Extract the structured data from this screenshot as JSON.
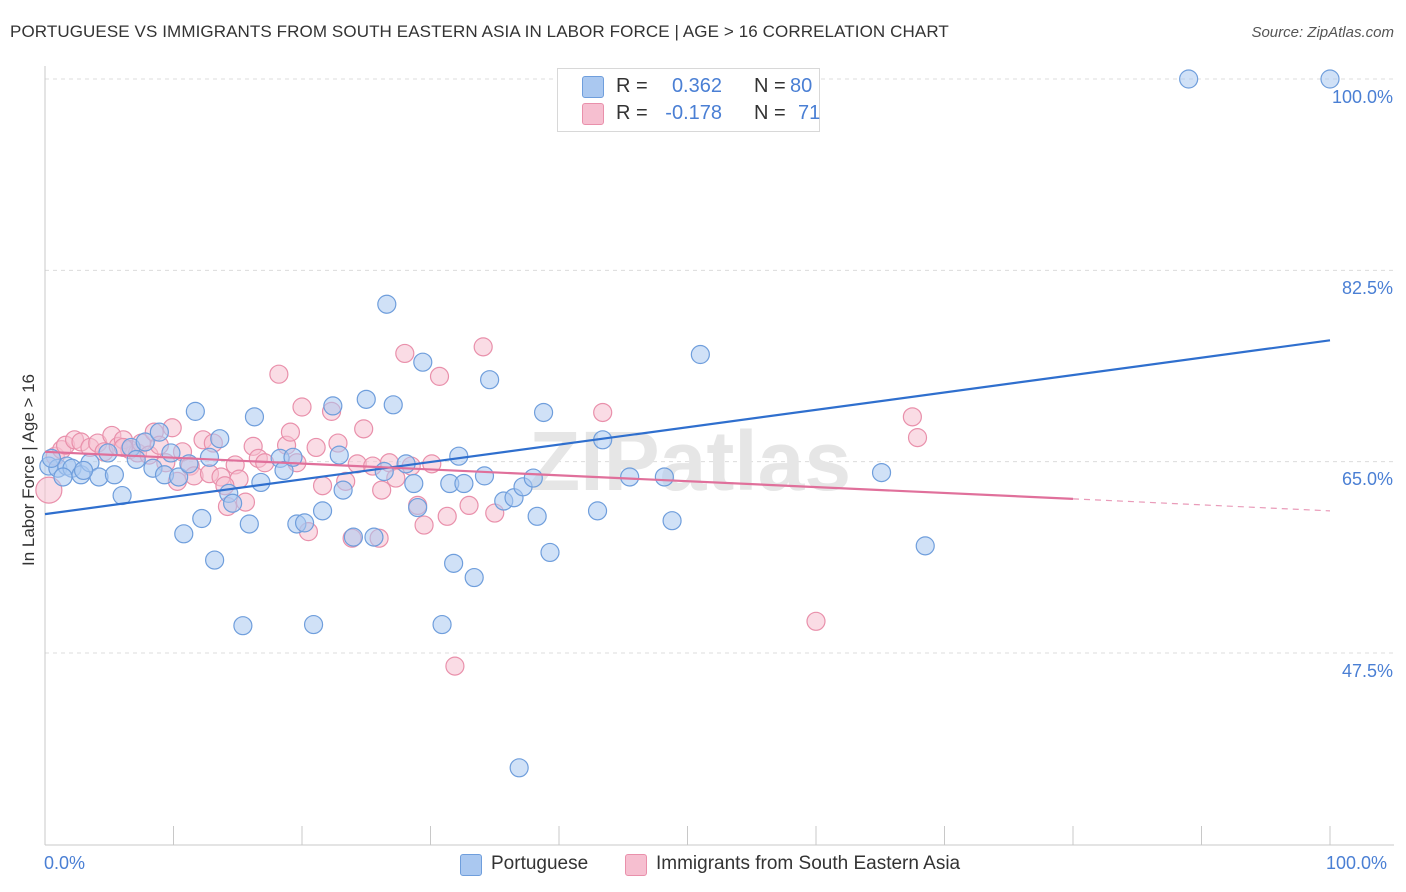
{
  "title": "PORTUGUESE VS IMMIGRANTS FROM SOUTH EASTERN ASIA IN LABOR FORCE | AGE > 16 CORRELATION CHART",
  "source": "Source: ZipAtlas.com",
  "watermark": "ZIPatlas",
  "colors": {
    "blue_fill": "#aac8f0",
    "blue_stroke": "#6f9edc",
    "blue_line": "#2f6fce",
    "pink_fill": "#f6bfd0",
    "pink_stroke": "#e990ab",
    "pink_line": "#e0709b",
    "axis_text": "#4a7fd4",
    "grid": "#dcdcdc"
  },
  "legend_top": {
    "rows": [
      {
        "r_label": "R =",
        "r_value": "0.362",
        "n_label": "N =",
        "n_value": "80",
        "color": "blue"
      },
      {
        "r_label": "R =",
        "r_value": "-0.178",
        "n_label": "N =",
        "n_value": "71",
        "color": "pink"
      }
    ]
  },
  "legend_bottom": [
    {
      "label": "Portuguese",
      "color": "blue"
    },
    {
      "label": "Immigrants from South Eastern Asia",
      "color": "pink"
    }
  ],
  "chart_data": {
    "type": "scatter",
    "title": "PORTUGUESE VS IMMIGRANTS FROM SOUTH EASTERN ASIA IN LABOR FORCE | AGE > 16 CORRELATION CHART",
    "xlabel": "",
    "ylabel": "In Labor Force | Age > 16",
    "x_tick_labels": [
      "0.0%",
      "100.0%"
    ],
    "y_tick_labels": [
      "100.0%",
      "82.5%",
      "65.0%",
      "47.5%"
    ],
    "y_ticks": [
      100.0,
      82.5,
      65.0,
      47.5
    ],
    "xlim": [
      0,
      100
    ],
    "ylim": [
      35.0,
      102.0
    ],
    "grid": true,
    "legend_position": "top-center",
    "series": [
      {
        "name": "Portuguese",
        "color": "blue",
        "r": 0.362,
        "n": 80,
        "trend": {
          "x0": 0,
          "y0": 60.2,
          "x1": 100,
          "y1": 76.1
        },
        "points": [
          [
            0.3,
            64.6
          ],
          [
            1.0,
            64.4
          ],
          [
            1.7,
            64.6
          ],
          [
            2.1,
            64.4
          ],
          [
            2.8,
            63.8
          ],
          [
            3.5,
            64.9
          ],
          [
            4.2,
            63.6
          ],
          [
            4.9,
            65.8
          ],
          [
            5.4,
            63.8
          ],
          [
            6.0,
            61.9
          ],
          [
            6.7,
            66.3
          ],
          [
            7.1,
            65.2
          ],
          [
            7.8,
            66.8
          ],
          [
            8.4,
            64.4
          ],
          [
            8.9,
            67.7
          ],
          [
            9.3,
            63.8
          ],
          [
            9.8,
            65.8
          ],
          [
            10.4,
            63.6
          ],
          [
            10.8,
            58.4
          ],
          [
            11.2,
            64.8
          ],
          [
            11.7,
            69.6
          ],
          [
            12.2,
            59.8
          ],
          [
            12.8,
            65.4
          ],
          [
            13.2,
            56.0
          ],
          [
            13.6,
            67.1
          ],
          [
            14.3,
            62.1
          ],
          [
            14.6,
            61.2
          ],
          [
            15.4,
            50.0
          ],
          [
            15.9,
            59.3
          ],
          [
            16.3,
            69.1
          ],
          [
            16.8,
            63.1
          ],
          [
            18.3,
            65.3
          ],
          [
            18.6,
            64.2
          ],
          [
            19.3,
            65.4
          ],
          [
            19.6,
            59.3
          ],
          [
            20.2,
            59.4
          ],
          [
            20.9,
            50.1
          ],
          [
            21.6,
            60.5
          ],
          [
            22.4,
            70.1
          ],
          [
            22.9,
            65.6
          ],
          [
            23.2,
            62.4
          ],
          [
            24.0,
            58.1
          ],
          [
            25.0,
            70.7
          ],
          [
            25.6,
            58.1
          ],
          [
            26.4,
            64.1
          ],
          [
            26.6,
            79.4
          ],
          [
            27.1,
            70.2
          ],
          [
            28.1,
            64.8
          ],
          [
            28.7,
            63.0
          ],
          [
            29.0,
            60.8
          ],
          [
            29.4,
            74.1
          ],
          [
            30.9,
            50.1
          ],
          [
            31.5,
            63.0
          ],
          [
            31.8,
            55.7
          ],
          [
            32.2,
            65.5
          ],
          [
            32.6,
            63.0
          ],
          [
            33.4,
            54.4
          ],
          [
            34.2,
            63.7
          ],
          [
            34.6,
            72.5
          ],
          [
            35.7,
            61.4
          ],
          [
            36.5,
            61.7
          ],
          [
            36.9,
            37.0
          ],
          [
            37.2,
            62.7
          ],
          [
            38.0,
            63.5
          ],
          [
            38.3,
            60.0
          ],
          [
            38.8,
            69.5
          ],
          [
            39.3,
            56.7
          ],
          [
            43.0,
            60.5
          ],
          [
            43.4,
            67.0
          ],
          [
            45.5,
            63.6
          ],
          [
            48.2,
            63.6
          ],
          [
            48.8,
            59.6
          ],
          [
            51.0,
            74.8
          ],
          [
            65.1,
            64.0
          ],
          [
            68.5,
            57.3
          ],
          [
            89.0,
            100.0
          ],
          [
            100.0,
            100.0
          ],
          [
            0.5,
            65.3
          ],
          [
            1.4,
            63.6
          ],
          [
            3.0,
            64.2
          ]
        ]
      },
      {
        "name": "Immigrants from South Eastern Asia",
        "color": "pink",
        "r": -0.178,
        "n": 71,
        "trend": {
          "x0": 0,
          "y0": 65.9,
          "x1": 80,
          "y1": 61.6,
          "dash_x1": 100,
          "dash_y1": 60.5
        },
        "points": [
          [
            0.3,
            62.4
          ],
          [
            0.8,
            65.5
          ],
          [
            1.3,
            66.1
          ],
          [
            1.6,
            66.5
          ],
          [
            2.3,
            67.0
          ],
          [
            2.8,
            66.8
          ],
          [
            3.5,
            66.3
          ],
          [
            4.1,
            66.7
          ],
          [
            4.6,
            65.9
          ],
          [
            5.2,
            67.4
          ],
          [
            5.7,
            66.4
          ],
          [
            6.1,
            67.0
          ],
          [
            6.6,
            66.1
          ],
          [
            7.2,
            65.8
          ],
          [
            7.5,
            66.7
          ],
          [
            8.1,
            65.6
          ],
          [
            8.5,
            67.7
          ],
          [
            8.9,
            66.5
          ],
          [
            9.4,
            64.9
          ],
          [
            9.9,
            68.1
          ],
          [
            10.3,
            63.2
          ],
          [
            10.7,
            65.9
          ],
          [
            11.3,
            64.6
          ],
          [
            11.6,
            63.7
          ],
          [
            12.3,
            67.0
          ],
          [
            12.8,
            63.9
          ],
          [
            13.1,
            66.7
          ],
          [
            13.7,
            63.6
          ],
          [
            14.2,
            60.9
          ],
          [
            14.8,
            64.7
          ],
          [
            15.1,
            63.4
          ],
          [
            15.6,
            61.3
          ],
          [
            16.2,
            66.4
          ],
          [
            16.6,
            65.3
          ],
          [
            17.1,
            64.9
          ],
          [
            18.2,
            73.0
          ],
          [
            18.8,
            66.5
          ],
          [
            19.1,
            67.7
          ],
          [
            19.6,
            64.9
          ],
          [
            20.0,
            70.0
          ],
          [
            20.5,
            58.6
          ],
          [
            21.1,
            66.3
          ],
          [
            21.6,
            62.8
          ],
          [
            22.3,
            69.6
          ],
          [
            22.8,
            66.7
          ],
          [
            23.4,
            63.2
          ],
          [
            23.9,
            58.0
          ],
          [
            24.3,
            64.8
          ],
          [
            24.8,
            68.0
          ],
          [
            25.5,
            64.6
          ],
          [
            26.0,
            58.0
          ],
          [
            26.2,
            62.4
          ],
          [
            26.8,
            64.9
          ],
          [
            27.3,
            63.5
          ],
          [
            28.0,
            74.9
          ],
          [
            28.5,
            64.6
          ],
          [
            29.0,
            61.0
          ],
          [
            29.5,
            59.2
          ],
          [
            30.1,
            64.8
          ],
          [
            30.7,
            72.8
          ],
          [
            31.3,
            60.0
          ],
          [
            31.9,
            46.3
          ],
          [
            33.0,
            61.0
          ],
          [
            34.1,
            75.5
          ],
          [
            35.0,
            60.3
          ],
          [
            43.4,
            69.5
          ],
          [
            60.0,
            50.4
          ],
          [
            67.5,
            69.1
          ],
          [
            67.9,
            67.2
          ],
          [
            14.0,
            62.8
          ],
          [
            6.1,
            66.3
          ]
        ]
      }
    ]
  }
}
